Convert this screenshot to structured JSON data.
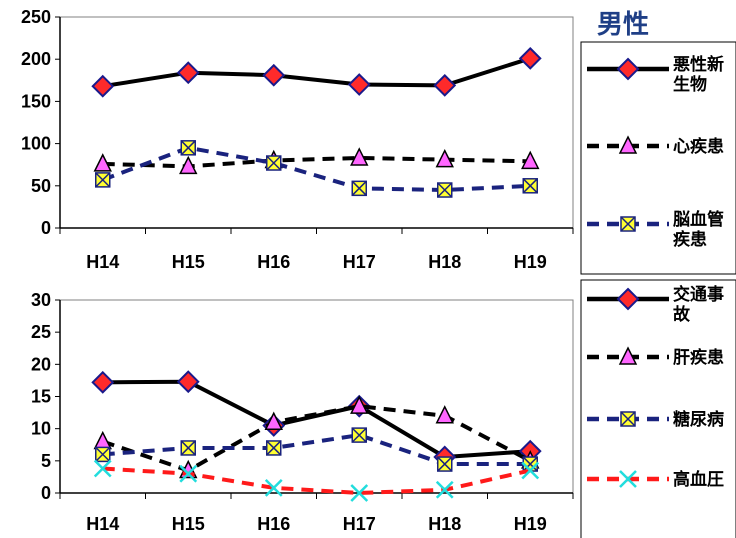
{
  "title": "男性",
  "chart_data": [
    {
      "type": "line",
      "categories": [
        "H14",
        "H15",
        "H16",
        "H17",
        "H18",
        "H19"
      ],
      "ylim": [
        0,
        250
      ],
      "yticks": [
        "0",
        "50",
        "100",
        "150",
        "200",
        "250"
      ],
      "grid": false,
      "series": [
        {
          "name": "悪性新\n生物",
          "values": [
            168,
            184,
            181,
            170,
            169,
            201
          ],
          "color": "#000000",
          "dash": "solid",
          "marker": "diamond",
          "marker_fill": "#ff2a2a",
          "marker_stroke": "#1a1a8c"
        },
        {
          "name": "心疾患",
          "values": [
            76,
            73,
            80,
            83,
            81,
            79
          ],
          "color": "#000000",
          "dash": "dashed",
          "marker": "triangle",
          "marker_fill": "#ff66ff",
          "marker_stroke": "#000000"
        },
        {
          "name": "脳血管\n疾患",
          "values": [
            57,
            95,
            77,
            47,
            45,
            50
          ],
          "color": "#1a237e",
          "dash": "dashed",
          "marker": "square-x",
          "marker_fill": "#ffff33",
          "marker_stroke": "#1a237e"
        }
      ]
    },
    {
      "type": "line",
      "categories": [
        "H14",
        "H15",
        "H16",
        "H17",
        "H18",
        "H19"
      ],
      "ylim": [
        0,
        30
      ],
      "yticks": [
        "0",
        "5",
        "10",
        "15",
        "20",
        "25",
        "30"
      ],
      "grid": false,
      "series": [
        {
          "name": "交通事\n故",
          "values": [
            17.2,
            17.3,
            10.5,
            13.5,
            5.6,
            6.5
          ],
          "color": "#000000",
          "dash": "solid",
          "marker": "diamond",
          "marker_fill": "#ff2a2a",
          "marker_stroke": "#1a1a8c"
        },
        {
          "name": "肝疾患",
          "values": [
            8,
            3.5,
            11,
            13.5,
            12,
            5
          ],
          "color": "#000000",
          "dash": "dashed",
          "marker": "triangle",
          "marker_fill": "#ff66ff",
          "marker_stroke": "#000000"
        },
        {
          "name": "糖尿病",
          "values": [
            6,
            7,
            7,
            9,
            4.5,
            4.5
          ],
          "color": "#1a237e",
          "dash": "dashed",
          "marker": "square-x",
          "marker_fill": "#ffff33",
          "marker_stroke": "#1a237e"
        },
        {
          "name": "高血圧",
          "values": [
            3.8,
            3,
            0.8,
            0,
            0.5,
            3.5
          ],
          "color": "#ff1a1a",
          "dash": "dashed",
          "marker": "x",
          "marker_fill": "none",
          "marker_stroke": "#22dddd"
        }
      ]
    }
  ]
}
